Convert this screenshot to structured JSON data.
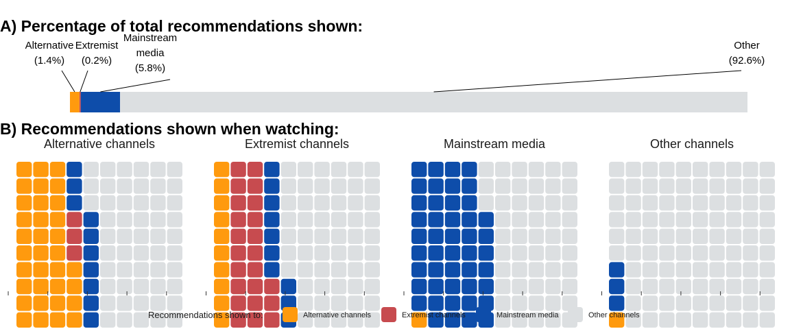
{
  "colors": {
    "alternative": "#FF9A0E",
    "extremist": "#C74B4F",
    "mainstream": "#0E4DAA",
    "other": "#DCDFE1"
  },
  "chart_data": [
    {
      "type": "bar",
      "orientation": "horizontal-stacked",
      "title": "A) Percentage of total recommendations shown:",
      "xlim": [
        0,
        100
      ],
      "categories": [
        "Alternative",
        "Extremist",
        "Mainstream media",
        "Other"
      ],
      "series": [
        {
          "name": "Alternative",
          "label_lines": [
            "Alternative",
            "(1.4%)"
          ],
          "value": 1.4,
          "color_key": "alternative"
        },
        {
          "name": "Extremist",
          "label_lines": [
            "Extremist",
            "(0.2%)"
          ],
          "value": 0.2,
          "color_key": "extremist"
        },
        {
          "name": "Mainstream media",
          "label_lines": [
            "Mainstream",
            "media",
            "(5.8%)"
          ],
          "value": 5.8,
          "color_key": "mainstream"
        },
        {
          "name": "Other",
          "label_lines": [
            "Other",
            "(92.6%)"
          ],
          "value": 92.6,
          "color_key": "other"
        }
      ]
    },
    {
      "type": "waffle",
      "title": "B) Recommendations shown when watching:",
      "grid": {
        "columns": 10,
        "rows": 10,
        "fill_order": "bottom-to-top, left-to-right"
      },
      "panels": [
        {
          "title": "Alternative channels",
          "counts": {
            "alternative": 34,
            "extremist": 3,
            "mainstream": 10,
            "other": 53
          }
        },
        {
          "title": "Extremist channels",
          "counts": {
            "alternative": 10,
            "extremist": 23,
            "mainstream": 10,
            "other": 57
          }
        },
        {
          "title": "Mainstream media",
          "counts": {
            "alternative": 1,
            "extremist": 0,
            "mainstream": 46,
            "other": 53
          }
        },
        {
          "title": "Other channels",
          "counts": {
            "alternative": 1,
            "extremist": 0,
            "mainstream": 3,
            "other": 96
          }
        }
      ]
    }
  ],
  "legend": {
    "title": "Recommendations shown to:",
    "placement": "bottom",
    "items": [
      {
        "label": "Alternative channels",
        "color_key": "alternative"
      },
      {
        "label": "Extremist channels",
        "color_key": "extremist"
      },
      {
        "label": "Mainstream media",
        "color_key": "mainstream"
      },
      {
        "label": "Other channels",
        "color_key": "other"
      }
    ]
  }
}
